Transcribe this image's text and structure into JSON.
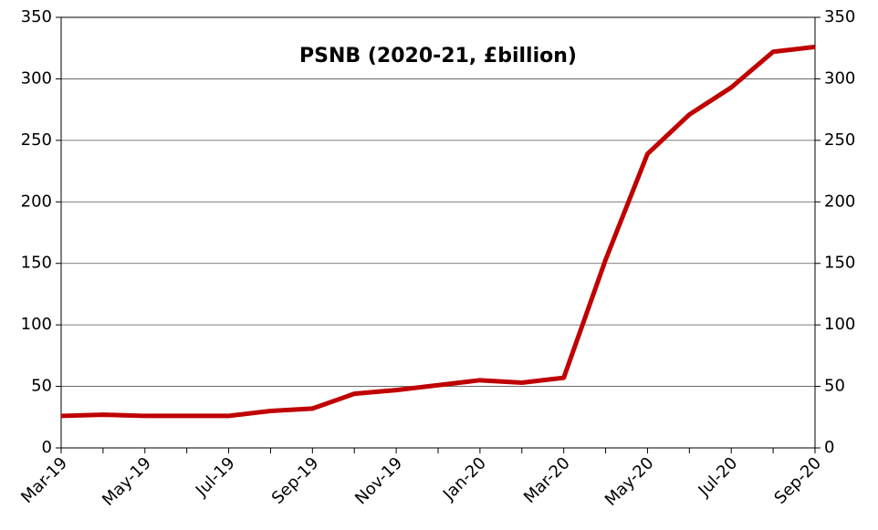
{
  "chart_data": {
    "type": "line",
    "title": "PSNB (2020-21, £billion)",
    "categories": [
      "Mar-19",
      null,
      "May-19",
      null,
      "Jul-19",
      null,
      "Sep-19",
      null,
      "Nov-19",
      null,
      "Jan-20",
      null,
      "Mar-20",
      null,
      "May-20",
      null,
      "Jul-20",
      null,
      "Sep-20"
    ],
    "series": [
      {
        "color": "#c00000",
        "values": [
          26,
          27,
          26,
          26,
          26,
          30,
          32,
          44,
          47,
          51,
          55,
          53,
          57,
          153,
          239,
          271,
          293,
          322,
          326
        ]
      }
    ],
    "ylim": [
      0,
      350
    ],
    "yticks": [
      0,
      50,
      100,
      150,
      200,
      250,
      300,
      350
    ],
    "y2lim": [
      0,
      350
    ],
    "y2ticks": [
      0,
      50,
      100,
      150,
      200,
      250,
      300,
      350
    ],
    "grid": true
  }
}
